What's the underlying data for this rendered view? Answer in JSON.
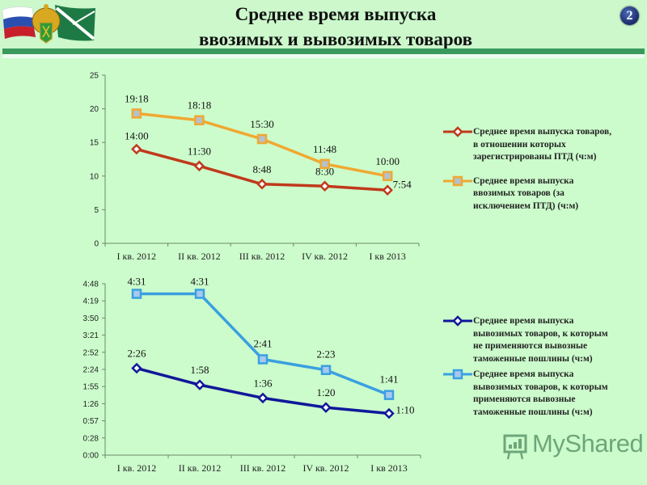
{
  "header": {
    "title_line1": "Среднее время выпуска",
    "title_line2": "ввозимых и вывозимых товаров",
    "slide_number": "2",
    "logo": "russian-flag-customs-emblem-icon"
  },
  "colors": {
    "background": "#ccfccc",
    "header_bar": "#3a9a5e",
    "series_ptd": "#c0391b",
    "series_import": "#f0a830",
    "series_export_no_duty": "#10189a",
    "series_export_duty": "#3aa0e0"
  },
  "watermark": {
    "text": "MyShared"
  },
  "chart_data": [
    {
      "type": "line",
      "title": "",
      "xlabel": "",
      "ylabel": "",
      "categories": [
        "I кв. 2012",
        "II кв. 2012",
        "III кв. 2012",
        "IV кв. 2012",
        "I кв 2013"
      ],
      "ylim": [
        0,
        25
      ],
      "yticks": [
        "0",
        "5",
        "10",
        "15",
        "20",
        "25"
      ],
      "grid": false,
      "legend_position": "right",
      "series": [
        {
          "name": "Среднее время выпуска товаров, в отношении которых зарегистрированы ПТД (ч:м)",
          "values": [
            14.0,
            11.5,
            8.8,
            8.5,
            7.9
          ],
          "labels": [
            "14:00",
            "11:30",
            "8:48",
            "8:30",
            "7:54"
          ],
          "marker": "diamond",
          "color": "#c0391b"
        },
        {
          "name": "Среднее время выпуска ввозимых товаров (за исключением ПТД) (ч:м)",
          "values": [
            19.3,
            18.3,
            15.5,
            11.8,
            10.0
          ],
          "labels": [
            "19:18",
            "18:18",
            "15:30",
            "11:48",
            "10:00"
          ],
          "marker": "square",
          "color": "#f0a830"
        }
      ]
    },
    {
      "type": "line",
      "title": "",
      "xlabel": "",
      "ylabel": "",
      "categories": [
        "I кв. 2012",
        "II кв. 2012",
        "III кв. 2012",
        "IV кв. 2012",
        "I кв 2013"
      ],
      "ylim": [
        "0:00",
        "4:48"
      ],
      "yticks": [
        "0:00",
        "0:28",
        "0:57",
        "1:26",
        "1:55",
        "2:24",
        "2:52",
        "3:21",
        "3:50",
        "4:19",
        "4:48"
      ],
      "grid": false,
      "legend_position": "right",
      "series": [
        {
          "name": "Среднее время выпуска вывозимых товаров, к которым не применяются вывозные таможенные пошлины (ч:м)",
          "values_minutes": [
            146,
            118,
            96,
            80,
            70
          ],
          "labels": [
            "2:26",
            "1:58",
            "1:36",
            "1:20",
            "1:10"
          ],
          "marker": "diamond",
          "color": "#10189a"
        },
        {
          "name": "Среднее время выпуска вывозимых товаров, к которым применяются вывозные таможенные пошлины (ч:м)",
          "values_minutes": [
            271,
            271,
            161,
            143,
            101
          ],
          "labels": [
            "4:31",
            "4:31",
            "2:41",
            "2:23",
            "1:41"
          ],
          "marker": "square",
          "color": "#3aa0e0"
        }
      ]
    }
  ]
}
